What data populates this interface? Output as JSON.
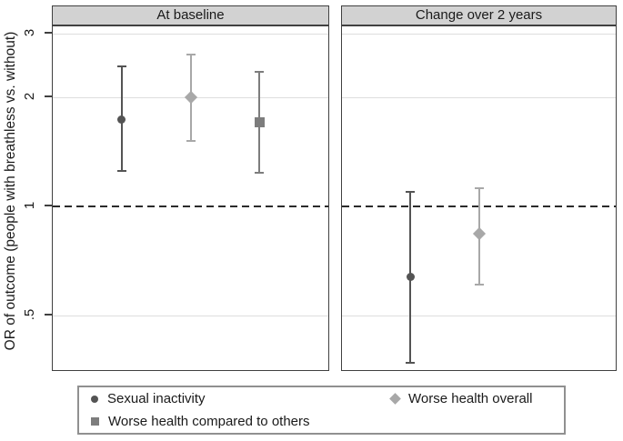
{
  "figure": {
    "ylabel": "OR of outcome (people with breathless vs. without)"
  },
  "chart_data": {
    "type": "scatter",
    "subtype": "forest-plot-with-error-bars",
    "yscale": "log",
    "ylabel": "OR of outcome (people with breathless vs. without)",
    "yticks": [
      {
        "label": "3",
        "value": 3
      },
      {
        "label": "2",
        "value": 2
      },
      {
        "label": "1",
        "value": 1
      },
      {
        "label": ".5",
        "value": 0.5
      }
    ],
    "ylim": [
      0.33,
      3.3
    ],
    "refline": {
      "value": 1,
      "style": "dashed"
    },
    "grid": true,
    "legend_position": "bottom",
    "panels": [
      {
        "title": "At baseline",
        "points": [
          {
            "series": "Sexual inactivity",
            "or": 1.74,
            "ci_low": 1.25,
            "ci_high": 2.43,
            "x_frac": 0.25
          },
          {
            "series": "Worse health overall",
            "or": 2.0,
            "ci_low": 1.52,
            "ci_high": 2.62,
            "x_frac": 0.5
          },
          {
            "series": "Worse health compared to others",
            "or": 1.71,
            "ci_low": 1.24,
            "ci_high": 2.35,
            "x_frac": 0.75
          }
        ]
      },
      {
        "title": "Change over 2 years",
        "points": [
          {
            "series": "Sexual inactivity",
            "or": 0.64,
            "ci_low": 0.37,
            "ci_high": 1.1,
            "x_frac": 0.25
          },
          {
            "series": "Worse health overall",
            "or": 0.84,
            "ci_low": 0.61,
            "ci_high": 1.12,
            "x_frac": 0.5
          }
        ]
      }
    ],
    "series": [
      {
        "name": "Sexual inactivity",
        "marker": "circle",
        "color": "#545454",
        "size": 9
      },
      {
        "name": "Worse health overall",
        "marker": "diamond",
        "color": "#a8a8a8",
        "size": 10
      },
      {
        "name": "Worse health compared to others",
        "marker": "square",
        "color": "#7d7d7d",
        "size": 11
      }
    ]
  },
  "legend": {
    "items": [
      {
        "label": "Sexual inactivity",
        "marker": "circle"
      },
      {
        "label": "Worse health overall",
        "marker": "diamond"
      },
      {
        "label": "Worse health compared to others",
        "marker": "square"
      }
    ]
  },
  "colors": {
    "panel_header_bg": "#d2d2d2",
    "frame": "#404040",
    "gridline": "#dedede",
    "refline": "#2b2b2b",
    "legend_border": "#909090"
  }
}
